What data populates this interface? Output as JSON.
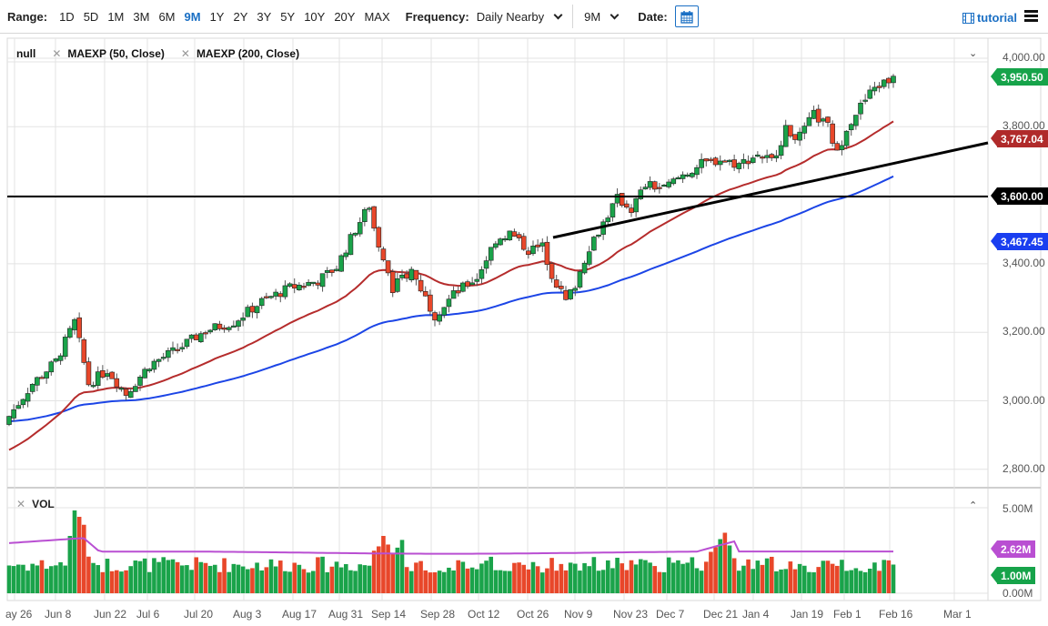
{
  "toolbar": {
    "range_label": "Range:",
    "ranges": [
      "1D",
      "5D",
      "1M",
      "3M",
      "6M",
      "9M",
      "1Y",
      "2Y",
      "3Y",
      "5Y",
      "10Y",
      "20Y",
      "MAX"
    ],
    "active_range": "9M",
    "frequency_label": "Frequency:",
    "frequency_value": "Daily Nearby",
    "span_value": "9M",
    "date_label": "Date:",
    "calendar_icon": "calendar-icon",
    "tutorial_label": "tutorial",
    "tutorial_icon": "film-icon",
    "menu_icon": "hamburger-menu-icon"
  },
  "legend": {
    "items": [
      {
        "label": "null",
        "removable": false
      },
      {
        "label": "MAEXP (50, Close)",
        "removable": true
      },
      {
        "label": "MAEXP (200, Close)",
        "removable": true
      }
    ],
    "volume_label": "VOL"
  },
  "colors": {
    "up": "#1aa34a",
    "down": "#e8472a",
    "ma50": "#b52c2c",
    "ma200": "#1c45e6",
    "vol_ma": "#b94fd2",
    "last_price_tag": "#16a34a",
    "ma50_tag": "#b02a2a",
    "level_tag": "#000000",
    "ma200_tag": "#1a3ef0",
    "vol_ma_tag": "#b94fd2",
    "vol_tag": "#16a34a",
    "accent": "#1a6fc4"
  },
  "tags": {
    "last_price": "3,950.50",
    "ma50": "3,767.04",
    "horizontal_level": "3,600.00",
    "ma200": "3,467.45",
    "vol_ma": "2.62M",
    "vol_last": "1.00M"
  },
  "chart_data": {
    "type": "candlestick",
    "title": "",
    "price_axis": {
      "ticks": [
        "4,000.00",
        "3,800.00",
        "3,600.00",
        "3,400.00",
        "3,200.00",
        "3,000.00",
        "2,800.00"
      ],
      "range": [
        2780,
        4040
      ]
    },
    "volume_axis": {
      "ticks": [
        "5.00M",
        "0.00M"
      ],
      "range": [
        0,
        5.5
      ]
    },
    "x_ticks": [
      "ay 26",
      "Jun 8",
      "Jun 22",
      "Jul 6",
      "Jul 20",
      "Aug 3",
      "Aug 17",
      "Aug 31",
      "Sep 14",
      "Sep 28",
      "Oct 12",
      "Oct 26",
      "Nov 9",
      "Nov 23",
      "Dec 7",
      "Dec 21",
      "Jan 4",
      "Jan 19",
      "Feb 1",
      "Feb 16",
      "Mar 1"
    ],
    "series": [
      {
        "name": "Price (daily candles)",
        "approx_close_path": [
          [
            0,
            2955
          ],
          [
            5,
            3050
          ],
          [
            10,
            3115
          ],
          [
            14,
            3230
          ],
          [
            17,
            3050
          ],
          [
            21,
            3090
          ],
          [
            25,
            3020
          ],
          [
            30,
            3105
          ],
          [
            36,
            3150
          ],
          [
            42,
            3205
          ],
          [
            48,
            3230
          ],
          [
            54,
            3290
          ],
          [
            60,
            3330
          ],
          [
            66,
            3350
          ],
          [
            70,
            3390
          ],
          [
            74,
            3500
          ],
          [
            77,
            3570
          ],
          [
            79,
            3440
          ],
          [
            82,
            3330
          ],
          [
            86,
            3380
          ],
          [
            91,
            3250
          ],
          [
            95,
            3310
          ],
          [
            100,
            3360
          ],
          [
            104,
            3470
          ],
          [
            107,
            3490
          ],
          [
            111,
            3440
          ],
          [
            114,
            3450
          ],
          [
            116,
            3370
          ],
          [
            119,
            3290
          ],
          [
            121,
            3340
          ],
          [
            124,
            3450
          ],
          [
            127,
            3520
          ],
          [
            130,
            3590
          ],
          [
            133,
            3560
          ],
          [
            136,
            3630
          ],
          [
            140,
            3620
          ],
          [
            144,
            3660
          ],
          [
            148,
            3690
          ],
          [
            152,
            3705
          ],
          [
            156,
            3690
          ],
          [
            160,
            3720
          ],
          [
            163,
            3700
          ],
          [
            166,
            3790
          ],
          [
            169,
            3770
          ],
          [
            172,
            3835
          ],
          [
            175,
            3800
          ],
          [
            177,
            3720
          ],
          [
            179,
            3800
          ],
          [
            182,
            3860
          ],
          [
            185,
            3915
          ],
          [
            188,
            3935
          ],
          [
            189,
            3950.5
          ]
        ]
      },
      {
        "name": "MAEXP (50, Close)",
        "last": 3767.04
      },
      {
        "name": "MAEXP (200, Close)",
        "last": 3467.45
      }
    ],
    "annotations": [
      {
        "type": "horizontal_line",
        "value": 3600.0
      },
      {
        "type": "trendline",
        "from": [
          "Nov 2",
          3480
        ],
        "to": [
          "Feb 26",
          3740
        ]
      }
    ],
    "volume": {
      "ma_last": "2.62M",
      "last": "1.00M",
      "peak_approx": "5.2M near Jun 10"
    },
    "grid": true,
    "legend_position": "top-left"
  }
}
